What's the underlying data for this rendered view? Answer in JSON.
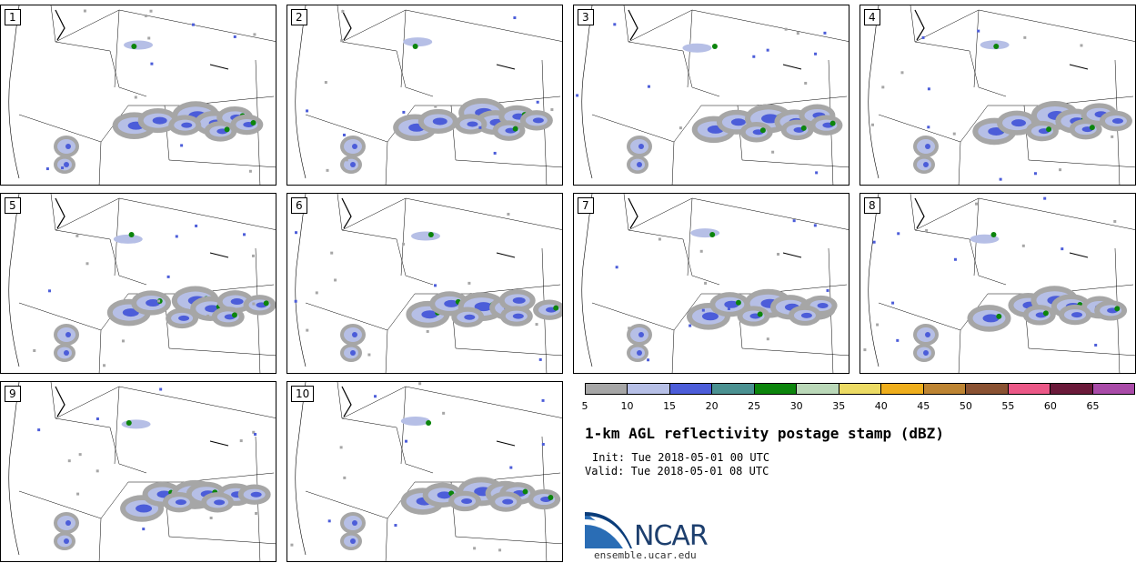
{
  "panels": [
    "1",
    "2",
    "3",
    "4",
    "5",
    "6",
    "7",
    "8",
    "9",
    "10"
  ],
  "colorbar": {
    "colors": [
      "#a6a6a6",
      "#b6bfe6",
      "#4c5dd9",
      "#4a9191",
      "#0c850c",
      "#bad8b8",
      "#ecdb64",
      "#eeae1c",
      "#bd8432",
      "#8a5232",
      "#eb5887",
      "#6b1a3a",
      "#a94ba8"
    ],
    "ticks": [
      "5",
      "10",
      "15",
      "20",
      "25",
      "30",
      "35",
      "40",
      "45",
      "50",
      "55",
      "60",
      "65"
    ]
  },
  "title": "1-km AGL reflectivity postage stamp (dBZ)",
  "init": "Init: Tue 2018-05-01 00 UTC",
  "valid": "Valid: Tue 2018-05-01 08 UTC",
  "logo": {
    "text": "NCAR",
    "url": "ensemble.ucar.edu"
  }
}
